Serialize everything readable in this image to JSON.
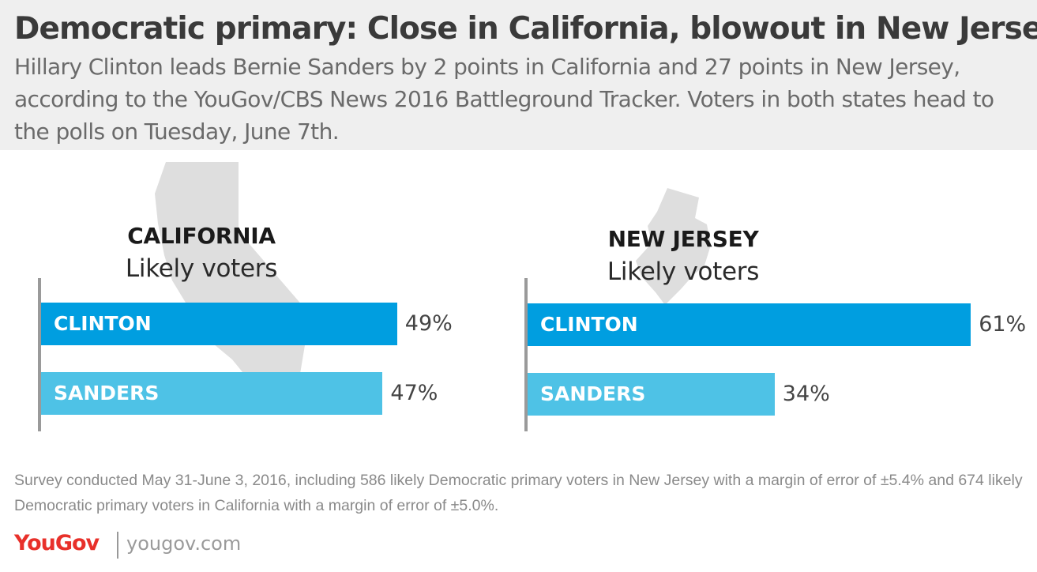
{
  "header": {
    "title": "Democratic primary: Close in California, blowout in New Jersey",
    "subtitle": "Hillary Clinton leads Bernie Sanders by 2 points in California and 27 points in New Jersey, according to the YouGov/CBS News 2016 Battleground Tracker. Voters in both states head to the polls on Tuesday, June 7th."
  },
  "colors": {
    "clinton": "#009ee0",
    "sanders": "#4ec2e6",
    "state_shape": "#dedede",
    "header_bg": "#efefef",
    "logo": "#e8302a"
  },
  "chart_data": [
    {
      "type": "bar",
      "orientation": "horizontal",
      "title": "CALIFORNIA",
      "subtitle": "Likely voters",
      "categories": [
        "CLINTON",
        "SANDERS"
      ],
      "values": [
        49,
        47
      ],
      "value_labels": [
        "49%",
        "47%"
      ],
      "grid": false,
      "icon": "california-map-icon"
    },
    {
      "type": "bar",
      "orientation": "horizontal",
      "title": "NEW JERSEY",
      "subtitle": "Likely voters",
      "categories": [
        "CLINTON",
        "SANDERS"
      ],
      "values": [
        61,
        34
      ],
      "value_labels": [
        "61%",
        "34%"
      ],
      "grid": false,
      "icon": "new-jersey-map-icon"
    }
  ],
  "footer": {
    "note": "Survey conducted May 31-June 3, 2016, including 586 likely Democratic primary voters in New Jersey with a margin of error of ±5.4% and 674 likely Democratic primary voters in California with a margin of error of ±5.0%.",
    "logo_text": "YouGov",
    "site": "yougov.com"
  }
}
